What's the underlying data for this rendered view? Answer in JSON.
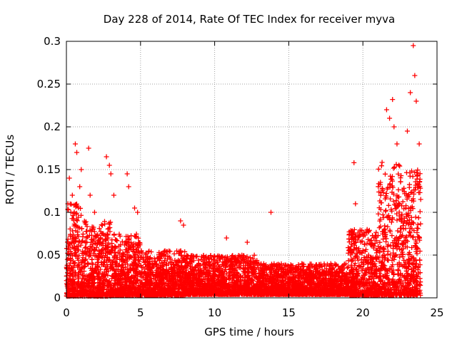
{
  "chart_data": {
    "type": "scatter",
    "title": "Day 228 of 2014, Rate Of TEC Index for receiver myva",
    "xlabel": "GPS time / hours",
    "ylabel": "ROTI / TECUs",
    "xlim": [
      0,
      25
    ],
    "ylim": [
      0,
      0.3
    ],
    "xticks": [
      0,
      5,
      10,
      15,
      20,
      25
    ],
    "yticks": [
      0,
      0.05,
      0.1,
      0.15,
      0.2,
      0.25,
      0.3
    ],
    "xtick_labels": [
      "0",
      "5",
      "10",
      "15",
      "20",
      "25"
    ],
    "ytick_labels": [
      "0",
      "0.05",
      "0.1",
      "0.15",
      "0.2",
      "0.25",
      "0.3"
    ],
    "grid": true,
    "marker": "+",
    "marker_color": "#ff0000",
    "series": [
      {
        "name": "ROTI",
        "x": [
          0.1,
          0.2,
          0.3,
          0.4,
          0.6,
          0.7,
          0.9,
          1.0,
          1.5,
          1.6,
          1.9,
          2.7,
          2.9,
          3.0,
          3.2,
          4.1,
          4.2,
          4.6,
          4.8,
          7.7,
          7.9,
          10.8,
          12.2,
          13.8,
          19.4,
          19.5,
          21.6,
          21.8,
          22.0,
          22.1,
          22.3,
          23.0,
          23.2,
          23.4,
          23.5,
          23.6,
          23.8
        ],
        "y": [
          0.11,
          0.14,
          0.1,
          0.12,
          0.18,
          0.17,
          0.13,
          0.15,
          0.175,
          0.12,
          0.1,
          0.165,
          0.155,
          0.145,
          0.12,
          0.145,
          0.13,
          0.105,
          0.1,
          0.09,
          0.085,
          0.07,
          0.065,
          0.1,
          0.158,
          0.11,
          0.22,
          0.21,
          0.232,
          0.2,
          0.18,
          0.195,
          0.24,
          0.295,
          0.26,
          0.23,
          0.18
        ]
      }
    ],
    "dense_band": {
      "segments": [
        {
          "x_start": 0.0,
          "x_end": 1.0,
          "y_low": 0.002,
          "y_high": 0.11
        },
        {
          "x_start": 1.0,
          "x_end": 3.0,
          "y_low": 0.002,
          "y_high": 0.09
        },
        {
          "x_start": 3.0,
          "x_end": 5.0,
          "y_low": 0.003,
          "y_high": 0.075
        },
        {
          "x_start": 5.0,
          "x_end": 8.0,
          "y_low": 0.003,
          "y_high": 0.055
        },
        {
          "x_start": 8.0,
          "x_end": 13.0,
          "y_low": 0.004,
          "y_high": 0.05
        },
        {
          "x_start": 13.0,
          "x_end": 19.0,
          "y_low": 0.004,
          "y_high": 0.04
        },
        {
          "x_start": 19.0,
          "x_end": 21.0,
          "y_low": 0.003,
          "y_high": 0.08
        },
        {
          "x_start": 21.0,
          "x_end": 22.5,
          "y_low": 0.003,
          "y_high": 0.16
        },
        {
          "x_start": 22.5,
          "x_end": 23.9,
          "y_low": 0.003,
          "y_high": 0.15
        }
      ]
    }
  }
}
